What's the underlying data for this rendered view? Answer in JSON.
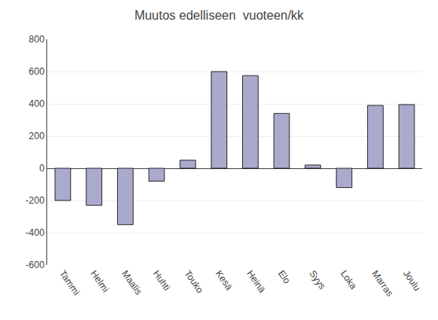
{
  "chart_data": {
    "type": "bar",
    "title": "Muutos edelliseen  vuoteen/kk",
    "categories": [
      "Tammi",
      "Helmi",
      "Maalis",
      "Huhti",
      "Touko",
      "Kesä",
      "Heinä",
      "Elo",
      "Syys",
      "Loka",
      "Marras",
      "Joulu"
    ],
    "values": [
      -200,
      -230,
      -350,
      -80,
      50,
      600,
      575,
      340,
      20,
      -120,
      390,
      395
    ],
    "color": "#aaaacc",
    "ylim": [
      -600,
      800
    ],
    "yticks": [
      -600,
      -400,
      -200,
      0,
      200,
      400,
      600,
      800
    ],
    "grid": true
  }
}
